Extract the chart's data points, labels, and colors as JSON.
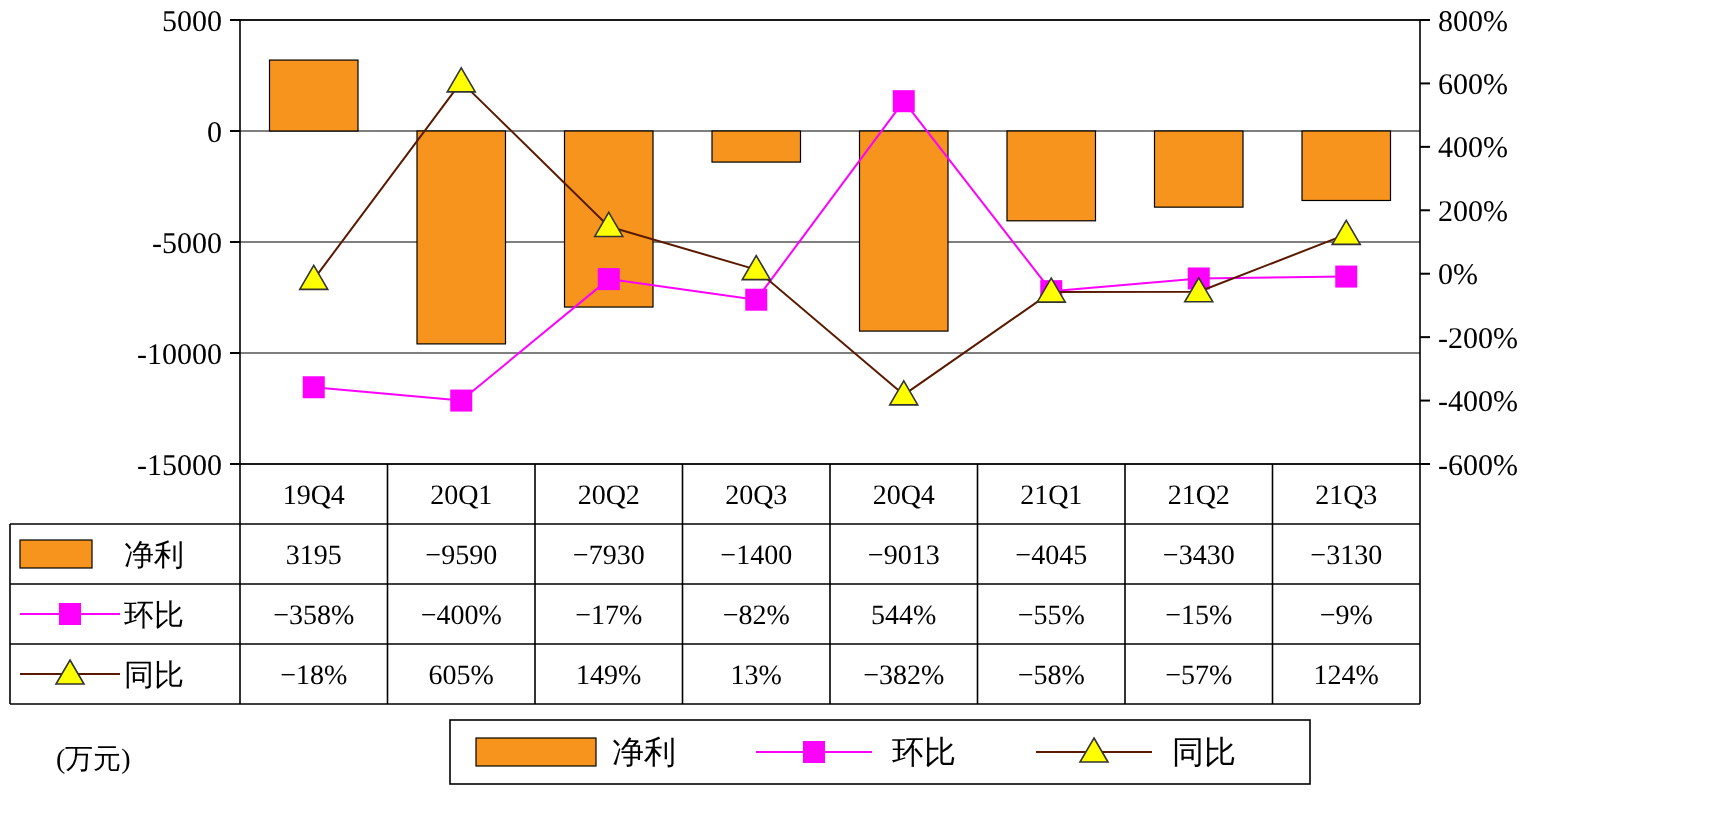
{
  "chart_data": {
    "type": "bar",
    "categories": [
      "19Q4",
      "20Q1",
      "20Q2",
      "20Q3",
      "20Q4",
      "21Q1",
      "21Q2",
      "21Q3"
    ],
    "series": [
      {
        "name": "净利",
        "color": "#f7941d",
        "values": [
          3195,
          -9590,
          -7930,
          -1400,
          -9013,
          -4045,
          -3430,
          -3130
        ],
        "value_labels": [
          "3195",
          "−9590",
          "−7930",
          "−1400",
          "−9013",
          "−4045",
          "−3430",
          "−3130"
        ]
      },
      {
        "name": "环比",
        "type": "line",
        "axis": "y2",
        "marker": "square",
        "color": "#ff00ff",
        "values": [
          -358,
          -400,
          -17,
          -82,
          544,
          -55,
          -15,
          -9
        ],
        "value_labels": [
          "−358%",
          "−400%",
          "−17%",
          "−82%",
          "544%",
          "−55%",
          "−15%",
          "−9%"
        ]
      },
      {
        "name": "同比",
        "type": "line",
        "axis": "y2",
        "marker": "triangle",
        "color": "#5a1a00",
        "colors": [
          "#ffff00",
          "#ffff00",
          "#ffff00",
          "#ffff00",
          "#ffff00",
          "#ffff00",
          "#ffff00",
          "#ffff00"
        ],
        "values": [
          -18,
          605,
          149,
          13,
          -382,
          -58,
          -57,
          124
        ],
        "value_labels": [
          "−18%",
          "605%",
          "149%",
          "13%",
          "−382%",
          "−58%",
          "−57%",
          "124%"
        ]
      }
    ],
    "ylim": [
      -15000,
      5000
    ],
    "yticks": [
      -15000,
      -10000,
      -5000,
      0,
      5000
    ],
    "y2lim": [
      -600,
      800
    ],
    "y2ticks": [
      {
        "value": -600,
        "label": "-600%"
      },
      {
        "value": -400,
        "label": "-400%"
      },
      {
        "value": -200,
        "label": "-200%"
      },
      {
        "value": 0,
        "label": "0%"
      },
      {
        "value": 200,
        "label": "200%"
      },
      {
        "value": 400,
        "label": "400%"
      },
      {
        "value": 600,
        "label": "600%"
      },
      {
        "value": 800,
        "label": "800%"
      }
    ],
    "grid": "y",
    "legend": "bottom",
    "annotations": [
      "(万元)"
    ]
  }
}
